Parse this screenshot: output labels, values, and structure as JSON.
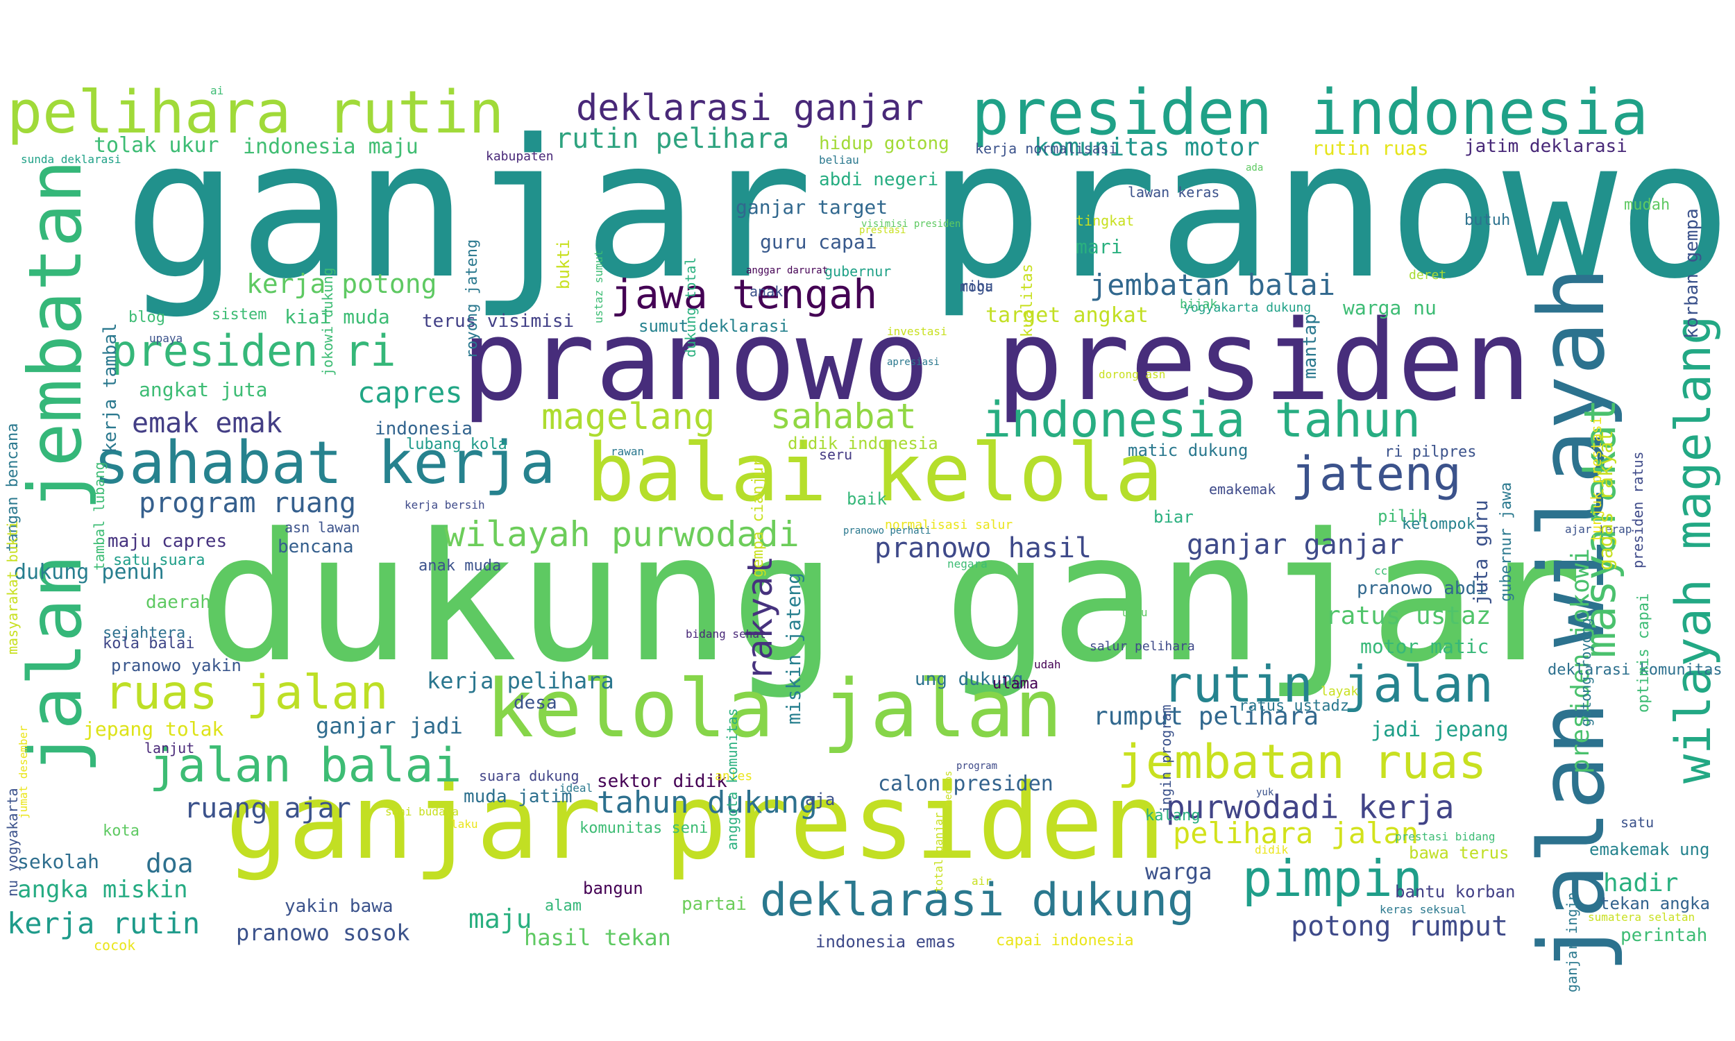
{
  "words": [
    {
      "text": "ganjar pranowo",
      "color": "#21918c"
    },
    {
      "text": "dukung ganjar",
      "color": "#5ec962"
    },
    {
      "text": "pranowo presiden",
      "color": "#472d7b"
    },
    {
      "text": "ganjar presiden",
      "color": "#c2df23"
    },
    {
      "text": "jalan wilayah",
      "color": "#2c728e"
    },
    {
      "text": "kelola jalan",
      "color": "#86d549"
    },
    {
      "text": "balai kelola",
      "color": "#b5de2b"
    },
    {
      "text": "jalan jembatan",
      "color": "#35b779"
    },
    {
      "text": "presiden indonesia",
      "color": "#1fa187"
    },
    {
      "text": "pelihara rutin",
      "color": "#a0da39"
    },
    {
      "text": "sahabat kerja",
      "color": "#26828e"
    },
    {
      "text": "wilayah magelang",
      "color": "#22a884"
    },
    {
      "text": "indonesia tahun",
      "color": "#27ad81"
    },
    {
      "text": "masyarakat",
      "color": "#4ac16d"
    },
    {
      "text": "jembatan ruas",
      "color": "#c8e020"
    },
    {
      "text": "rutin jalan",
      "color": "#25838e"
    },
    {
      "text": "deklarasi dukung",
      "color": "#2a788e"
    },
    {
      "text": "pimpin",
      "color": "#1f9e89"
    },
    {
      "text": "jawa tengah",
      "color": "#440154"
    },
    {
      "text": "jateng",
      "color": "#3b528b"
    },
    {
      "text": "ruas jalan",
      "color": "#bddf26"
    },
    {
      "text": "jalan balai",
      "color": "#3dbc74"
    },
    {
      "text": "deklarasi ganjar",
      "color": "#482878"
    },
    {
      "text": "presiden ri",
      "color": "#35b779"
    },
    {
      "text": "wilayah purwodadi",
      "color": "#6ccd5a"
    },
    {
      "text": "magelang",
      "color": "#addc30"
    },
    {
      "text": "sahabat",
      "color": "#90d743"
    },
    {
      "text": "rakyat",
      "color": "#46327e"
    },
    {
      "text": "purwodadi kerja",
      "color": "#414487"
    },
    {
      "text": "tahun dukung",
      "color": "#2d708e"
    },
    {
      "text": "presiden jokowi",
      "color": "#4ac16d"
    },
    {
      "text": "pelihara jalan",
      "color": "#d2e21b"
    },
    {
      "text": "program ruang",
      "color": "#355f8d"
    },
    {
      "text": "capres",
      "color": "#21a685"
    },
    {
      "text": "jembatan balai",
      "color": "#31688e"
    },
    {
      "text": "pranowo hasil",
      "color": "#3e4989"
    },
    {
      "text": "ganjar ganjar",
      "color": "#3e4a89"
    },
    {
      "text": "rutin pelihara",
      "color": "#2ea37f"
    },
    {
      "text": "kerja rutin",
      "color": "#1e9b8a"
    },
    {
      "text": "ruang ajar",
      "color": "#3b528b"
    },
    {
      "text": "potong rumput",
      "color": "#3e4a89"
    },
    {
      "text": "emak emak",
      "color": "#433e85"
    },
    {
      "text": "kerja potong",
      "color": "#5ec962"
    },
    {
      "text": "rumput pelihara",
      "color": "#31688e"
    },
    {
      "text": "ratus ustaz",
      "color": "#50c46a"
    },
    {
      "text": "komunitas motor",
      "color": "#1f958b"
    },
    {
      "text": "angka miskin",
      "color": "#25ab82"
    },
    {
      "text": "hadir",
      "color": "#2ab07f"
    },
    {
      "text": "maju",
      "color": "#29af7f"
    },
    {
      "text": "doa",
      "color": "#2d708e"
    },
    {
      "text": "warga",
      "color": "#3b528b"
    },
    {
      "text": "hasil tekan",
      "color": "#5ec962"
    },
    {
      "text": "kerja pelihara",
      "color": "#2a768e"
    },
    {
      "text": "ganjar jadi",
      "color": "#2f6c8e"
    },
    {
      "text": "jadi jepang",
      "color": "#1f9f88"
    },
    {
      "text": "calon presiden",
      "color": "#33638d"
    },
    {
      "text": "miskin jateng",
      "color": "#277f8e"
    },
    {
      "text": "pranowo sosok",
      "color": "#3b528b"
    },
    {
      "text": "tolak ukur",
      "color": "#3dbc74"
    },
    {
      "text": "indonesia maju",
      "color": "#40bd72"
    },
    {
      "text": "ganjar target",
      "color": "#31688e"
    },
    {
      "text": "guru capai",
      "color": "#38598c"
    },
    {
      "text": "target angkat",
      "color": "#c2df23"
    },
    {
      "text": "jepang tolak",
      "color": "#dde318"
    },
    {
      "text": "motor matic",
      "color": "#37b878"
    },
    {
      "text": "dukung penuh",
      "color": "#277e8e"
    },
    {
      "text": "sekolah",
      "color": "#2e6e8e"
    },
    {
      "text": "rutin ruas",
      "color": "#e5e419"
    },
    {
      "text": "jatim deklarasi",
      "color": "#482878"
    },
    {
      "text": "hidup gotong",
      "color": "#a2da37"
    },
    {
      "text": "abdi negeri",
      "color": "#26ad81"
    },
    {
      "text": "kiai muda",
      "color": "#3dbc74"
    },
    {
      "text": "warga nu",
      "color": "#3dbc74"
    },
    {
      "text": "angkat juta",
      "color": "#3dbc74"
    },
    {
      "text": "terus visimisi",
      "color": "#424086"
    },
    {
      "text": "sumut deklarasi",
      "color": "#26828e"
    },
    {
      "text": "mantap",
      "color": "#2a788e"
    },
    {
      "text": "mari",
      "color": "#2ab07f"
    },
    {
      "text": "bencana",
      "color": "#355f8d"
    },
    {
      "text": "maju capres",
      "color": "#46337f"
    },
    {
      "text": "emakemak ung",
      "color": "#25838e"
    },
    {
      "text": "tekan angka",
      "color": "#33638d"
    },
    {
      "text": "perintah",
      "color": "#3dbc74"
    },
    {
      "text": "bantu korban",
      "color": "#424086"
    },
    {
      "text": "bawa terus",
      "color": "#c0df25"
    },
    {
      "text": "indonesia emas",
      "color": "#3e4a89"
    },
    {
      "text": "capai indonesia",
      "color": "#eae51a"
    },
    {
      "text": "yakin bawa",
      "color": "#3b528b"
    },
    {
      "text": "bangun",
      "color": "#440154"
    },
    {
      "text": "partai",
      "color": "#6ccd5a"
    },
    {
      "text": "alam",
      "color": "#35b779"
    },
    {
      "text": "daerah",
      "color": "#5ec962"
    },
    {
      "text": "pranowo yakin",
      "color": "#39568c"
    },
    {
      "text": "sejahtera",
      "color": "#2d708e"
    },
    {
      "text": "kola balai",
      "color": "#3f4788"
    },
    {
      "text": "didik indonesia",
      "color": "#a8db34"
    },
    {
      "text": "matic dukung",
      "color": "#2a788e"
    },
    {
      "text": "ri pilpres",
      "color": "#3b528b"
    },
    {
      "text": "indonesia",
      "color": "#32648e"
    },
    {
      "text": "lubang kola",
      "color": "#1f9a8a"
    },
    {
      "text": "baik",
      "color": "#35b779"
    },
    {
      "text": "seru",
      "color": "#443a83"
    },
    {
      "text": "biar",
      "color": "#2ab07f"
    },
    {
      "text": "pilih",
      "color": "#3dbc74"
    },
    {
      "text": "kelompok",
      "color": "#26828e"
    },
    {
      "text": "emakemak",
      "color": "#3e4a89"
    },
    {
      "text": "pranowo abdi",
      "color": "#31688e"
    },
    {
      "text": "deklarasi komunitas",
      "color": "#2d708e"
    },
    {
      "text": "ratus ustadz",
      "color": "#2a788e"
    },
    {
      "text": "ung dukung",
      "color": "#2c728e"
    },
    {
      "text": "desa",
      "color": "#3b528b"
    },
    {
      "text": "sektor didik",
      "color": "#440154"
    },
    {
      "text": "muda jatim",
      "color": "#2d708e"
    },
    {
      "text": "aja",
      "color": "#3b528b"
    },
    {
      "text": "kalang",
      "color": "#29af7f"
    },
    {
      "text": "komunitas seni",
      "color": "#3dbc74"
    },
    {
      "text": "suara dukung",
      "color": "#414487"
    },
    {
      "text": "satu suara",
      "color": "#1f9e89"
    },
    {
      "text": "anak muda",
      "color": "#3b528b"
    },
    {
      "text": "asn lawan",
      "color": "#3b528b"
    },
    {
      "text": "kerja bersih",
      "color": "#3e4a89"
    },
    {
      "text": "butuh",
      "color": "#2c728e"
    },
    {
      "text": "mudah",
      "color": "#5ec962"
    },
    {
      "text": "lawan keras",
      "color": "#3b528b"
    },
    {
      "text": "tingkat",
      "color": "#c8e020"
    },
    {
      "text": "deret",
      "color": "#a8db34"
    },
    {
      "text": "gubernur",
      "color": "#1fa187"
    },
    {
      "text": "moga",
      "color": "#3b528b"
    },
    {
      "text": "ribu",
      "color": "#3b528b"
    },
    {
      "text": "anak",
      "color": "#3b528b"
    },
    {
      "text": "yogyakarta dukung",
      "color": "#1fa187"
    },
    {
      "text": "bijak",
      "color": "#3dbc74"
    },
    {
      "text": "blog",
      "color": "#3dbc74"
    },
    {
      "text": "sistem",
      "color": "#3dbc74"
    },
    {
      "text": "upaya",
      "color": "#3b528b"
    },
    {
      "text": "apresiasi",
      "color": "#2a788e"
    },
    {
      "text": "investasi",
      "color": "#c8e020"
    },
    {
      "text": "dorong asn",
      "color": "#c8e020"
    },
    {
      "text": "rawan",
      "color": "#2a788e"
    },
    {
      "text": "kerja normalisasi",
      "color": "#3b528b"
    },
    {
      "text": "beliau",
      "color": "#2a788e"
    },
    {
      "text": "kabupaten",
      "color": "#482878"
    },
    {
      "text": "sunda deklarasi",
      "color": "#1fa187"
    },
    {
      "text": "ai",
      "color": "#3dbc74"
    },
    {
      "text": "ada",
      "color": "#5ec962"
    },
    {
      "text": "anggar darurat",
      "color": "#440154"
    },
    {
      "text": "normalisasi salur",
      "color": "#eae51a"
    },
    {
      "text": "negara",
      "color": "#3dbc74"
    },
    {
      "text": "tuju",
      "color": "#5ec962"
    },
    {
      "text": "salur pelihara",
      "color": "#3e4a89"
    },
    {
      "text": "udah",
      "color": "#440154"
    },
    {
      "text": "bidang sehat",
      "color": "#482878"
    },
    {
      "text": "lanjut",
      "color": "#482878"
    },
    {
      "text": "medsos",
      "color": "#c8e020"
    },
    {
      "text": "prestasi",
      "color": "#c8e020"
    },
    {
      "text": "air",
      "color": "#c8e020"
    },
    {
      "text": "seni budaya",
      "color": "#c8e020"
    },
    {
      "text": "laku",
      "color": "#eae51a"
    },
    {
      "text": "ideal",
      "color": "#2a788e"
    },
    {
      "text": "anies",
      "color": "#eae51a"
    },
    {
      "text": "program",
      "color": "#3e4a89"
    },
    {
      "text": "didik",
      "color": "#eae51a"
    },
    {
      "text": "prestasi bidang",
      "color": "#3dbc74"
    },
    {
      "text": "yuk",
      "color": "#3b528b"
    },
    {
      "text": "satu",
      "color": "#3b528b"
    },
    {
      "text": "keras seksual",
      "color": "#2a788e"
    },
    {
      "text": "ganjar ingin",
      "color": "#2a788e"
    },
    {
      "text": "sumatera selatan",
      "color": "#c8e020"
    },
    {
      "text": "cocok",
      "color": "#eae51a"
    },
    {
      "text": "kota",
      "color": "#5ec962"
    },
    {
      "text": "ulama",
      "color": "#440154"
    },
    {
      "text": "layak",
      "color": "#c8e020"
    },
    {
      "text": "cc",
      "color": "#3dbc74"
    },
    {
      "text": "ajar terap",
      "color": "#3b528b"
    },
    {
      "text": "visimisi presiden",
      "color": "#5ec962"
    },
    {
      "text": "pranowo perhati",
      "color": "#2a788e"
    },
    {
      "text": "kerja tambal",
      "color": "#2a788e"
    },
    {
      "text": "tangan bencana",
      "color": "#2a788e"
    },
    {
      "text": "masyarakat bukti",
      "color": "#c8e020"
    },
    {
      "text": "tambal lubang",
      "color": "#3dbc74"
    },
    {
      "text": "nu yogyakarta",
      "color": "#3b528b"
    },
    {
      "text": "jumat desember",
      "color": "#eae51a"
    },
    {
      "text": "jokowi dukung",
      "color": "#3dbc74"
    },
    {
      "text": "royong jateng",
      "color": "#2a788e"
    },
    {
      "text": "ustaz sumut",
      "color": "#3dbc74"
    },
    {
      "text": "bukti",
      "color": "#c8e020"
    },
    {
      "text": "dukung total",
      "color": "#2ab07f"
    },
    {
      "text": "kualitas",
      "color": "#c8e020"
    },
    {
      "text": "gempa cianjur",
      "color": "#c8e020"
    },
    {
      "text": "anggota komunitas",
      "color": "#2ab07f"
    },
    {
      "text": "total ganjar",
      "color": "#c8e020"
    },
    {
      "text": "ingin program",
      "color": "#3b528b"
    },
    {
      "text": "juta guru",
      "color": "#3b528b"
    },
    {
      "text": "gubernur jawa",
      "color": "#2a788e"
    },
    {
      "text": "tunjuk prestasi",
      "color": "#eae51a"
    },
    {
      "text": "gagas rakyat",
      "color": "#c8e020"
    },
    {
      "text": "presiden ratus",
      "color": "#3e4a89"
    },
    {
      "text": "gotong royong",
      "color": "#2a788e"
    },
    {
      "text": "optimis capai",
      "color": "#3dbc74"
    },
    {
      "text": "korban gempa",
      "color": "#3b528b"
    }
  ]
}
